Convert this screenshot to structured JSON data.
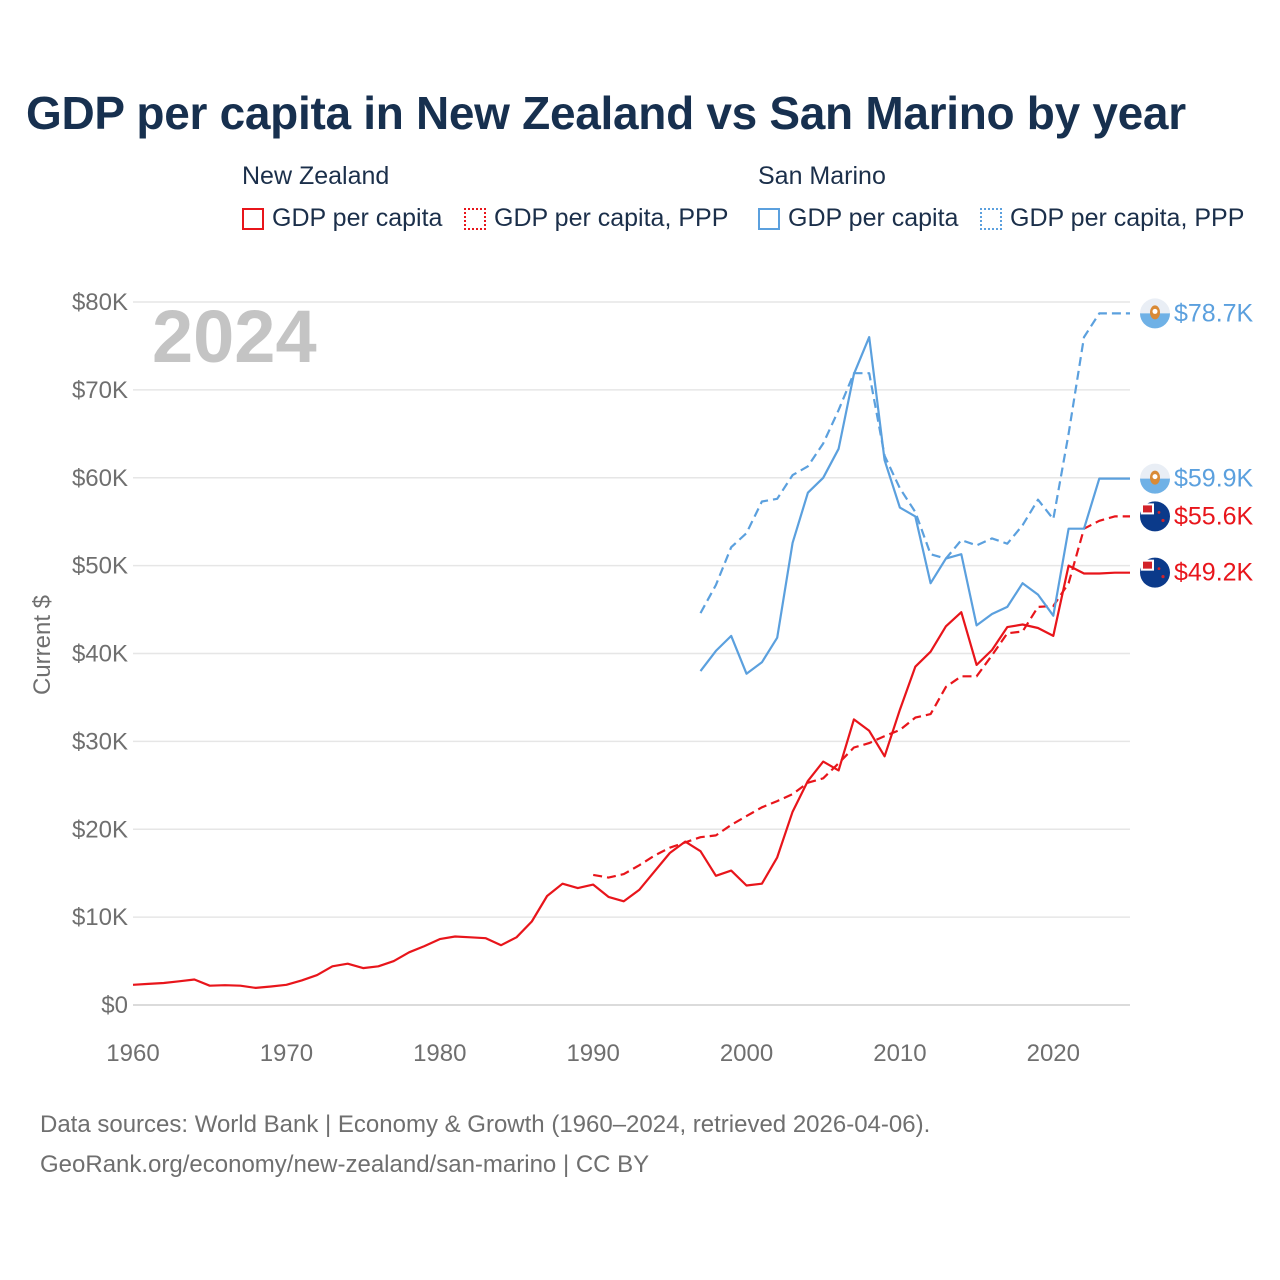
{
  "title": "GDP per capita in New Zealand vs San Marino by year",
  "legend": {
    "groups": [
      {
        "name": "New Zealand",
        "items": [
          "GDP per capita",
          "GDP per capita, PPP"
        ],
        "color": "#e8151b"
      },
      {
        "name": "San Marino",
        "items": [
          "GDP per capita",
          "GDP per capita, PPP"
        ],
        "color": "#5ba0de"
      }
    ]
  },
  "year_watermark": "2024",
  "footer": {
    "line1": "Data sources: World Bank | Economy & Growth (1960–2024, retrieved 2026-04-06).",
    "line2": "GeoRank.org/economy/new-zealand/san-marino | CC BY"
  },
  "colors": {
    "new_zealand": "#e8151b",
    "san_marino": "#5ba0de",
    "grid": "#e6e6e6",
    "axis_text": "#6f6f6f"
  },
  "chart_data": {
    "type": "line",
    "title": "GDP per capita in New Zealand vs San Marino by year",
    "xlabel": "",
    "ylabel": "Current $",
    "xlim": [
      1960,
      2025
    ],
    "ylim": [
      0,
      80000
    ],
    "x_ticks": [
      1960,
      1970,
      1980,
      1990,
      2000,
      2010,
      2020
    ],
    "y_ticks": [
      0,
      10000,
      20000,
      30000,
      40000,
      50000,
      60000,
      70000,
      80000
    ],
    "y_tick_labels": [
      "$0",
      "$10K",
      "$20K",
      "$30K",
      "$40K",
      "$50K",
      "$60K",
      "$70K",
      "$80K"
    ],
    "series": [
      {
        "name": "New Zealand GDP per capita",
        "country": "New Zealand",
        "style": "solid",
        "color": "#e8151b",
        "end_label": "$49.2K",
        "x": [
          1960,
          1961,
          1962,
          1963,
          1964,
          1965,
          1966,
          1967,
          1968,
          1969,
          1970,
          1971,
          1972,
          1973,
          1974,
          1975,
          1976,
          1977,
          1978,
          1979,
          1980,
          1981,
          1982,
          1983,
          1984,
          1985,
          1986,
          1987,
          1988,
          1989,
          1990,
          1991,
          1992,
          1993,
          1994,
          1995,
          1996,
          1997,
          1998,
          1999,
          2000,
          2001,
          2002,
          2003,
          2004,
          2005,
          2006,
          2007,
          2008,
          2009,
          2010,
          2011,
          2012,
          2013,
          2014,
          2015,
          2016,
          2017,
          2018,
          2019,
          2020,
          2021,
          2022,
          2023,
          2024
        ],
        "values": [
          2300,
          2400,
          2500,
          2700,
          2900,
          2200,
          2250,
          2200,
          1950,
          2100,
          2300,
          2800,
          3400,
          4400,
          4700,
          4200,
          4400,
          5000,
          6000,
          6700,
          7500,
          7800,
          7700,
          7600,
          6800,
          7700,
          9500,
          12400,
          13800,
          13300,
          13700,
          12300,
          11800,
          13100,
          15200,
          17300,
          18600,
          17500,
          14700,
          15300,
          13600,
          13800,
          16800,
          22000,
          25500,
          27700,
          26700,
          32500,
          31200,
          28300,
          33600,
          38500,
          40200,
          43100,
          44700,
          38700,
          40400,
          43000,
          43300,
          42900,
          42000,
          50000,
          49100,
          49100,
          49200
        ]
      },
      {
        "name": "New Zealand GDP per capita, PPP",
        "country": "New Zealand",
        "style": "dashed",
        "color": "#e8151b",
        "end_label": "$55.6K",
        "x": [
          1990,
          1991,
          1992,
          1993,
          1994,
          1995,
          1996,
          1997,
          1998,
          1999,
          2000,
          2001,
          2002,
          2003,
          2004,
          2005,
          2006,
          2007,
          2008,
          2009,
          2010,
          2011,
          2012,
          2013,
          2014,
          2015,
          2016,
          2017,
          2018,
          2019,
          2020,
          2021,
          2022,
          2023,
          2024
        ],
        "values": [
          14800,
          14500,
          14900,
          15900,
          17000,
          17900,
          18500,
          19100,
          19300,
          20500,
          21500,
          22500,
          23200,
          24000,
          25300,
          25800,
          27500,
          29300,
          29800,
          30600,
          31300,
          32700,
          33100,
          36200,
          37400,
          37400,
          39800,
          42300,
          42500,
          45300,
          45400,
          48000,
          54200,
          55100,
          55600
        ]
      },
      {
        "name": "San Marino GDP per capita",
        "country": "San Marino",
        "style": "solid",
        "color": "#5ba0de",
        "end_label": "$59.9K",
        "x": [
          1997,
          1998,
          1999,
          2000,
          2001,
          2002,
          2003,
          2004,
          2005,
          2006,
          2007,
          2008,
          2009,
          2010,
          2011,
          2012,
          2013,
          2014,
          2015,
          2016,
          2017,
          2018,
          2019,
          2020,
          2021,
          2022,
          2023,
          2024
        ],
        "values": [
          38000,
          40300,
          42000,
          37700,
          39000,
          41800,
          52600,
          58300,
          60000,
          63300,
          71800,
          76000,
          62000,
          56600,
          55600,
          48000,
          50800,
          51300,
          43200,
          44500,
          45300,
          48000,
          46700,
          44300,
          54200,
          54200,
          59900,
          59900
        ]
      },
      {
        "name": "San Marino GDP per capita, PPP",
        "country": "San Marino",
        "style": "dashed",
        "color": "#5ba0de",
        "end_label": "$78.7K",
        "x": [
          1997,
          1998,
          1999,
          2000,
          2001,
          2002,
          2003,
          2004,
          2005,
          2006,
          2007,
          2008,
          2009,
          2010,
          2011,
          2012,
          2013,
          2014,
          2015,
          2016,
          2017,
          2018,
          2019,
          2020,
          2021,
          2022,
          2023,
          2024
        ],
        "values": [
          44600,
          47800,
          52100,
          53700,
          57300,
          57600,
          60300,
          61300,
          63900,
          67700,
          71900,
          71900,
          62500,
          58800,
          56100,
          51300,
          50800,
          52900,
          52300,
          53100,
          52500,
          54600,
          57500,
          55300,
          65000,
          76000,
          78700,
          78700
        ]
      }
    ]
  }
}
